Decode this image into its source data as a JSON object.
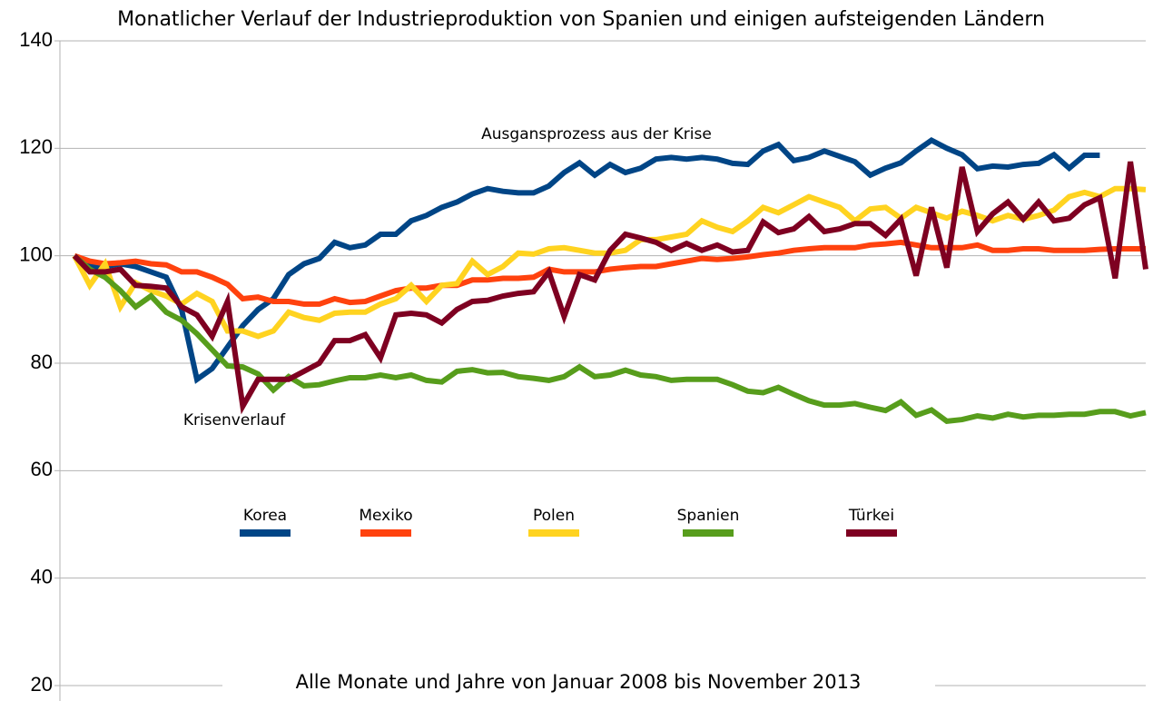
{
  "chart_data": {
    "type": "line",
    "title": "Monatlicher Verlauf der Industrieproduktion von Spanien und einigen aufsteigenden Ländern",
    "x_label": "Alle Monate und Jahre von Januar 2008 bis November 2013",
    "annotations": [
      "Ausgansprozess aus der Krise",
      "Krisenverlauf"
    ],
    "ylim": [
      20,
      140
    ],
    "yticks": [
      20,
      40,
      60,
      80,
      100,
      120,
      140
    ],
    "grid": true,
    "legend": "center",
    "series": [
      {
        "name": "Korea",
        "color": "#004586",
        "values": [
          100,
          98,
          98,
          98.5,
          98,
          97,
          96,
          90,
          77,
          79,
          83,
          87,
          90,
          92,
          96.5,
          98.5,
          99.5,
          102.5,
          101.5,
          102,
          104,
          104,
          106.5,
          107.5,
          109,
          110,
          111.5,
          112.5,
          112,
          111.7,
          111.7,
          113,
          115.5,
          117.3,
          115,
          117,
          115.5,
          116.3,
          118,
          118.3,
          118,
          118.3,
          118,
          117.2,
          117,
          119.5,
          120.7,
          117.7,
          118.3,
          119.5,
          118.5,
          117.5,
          115,
          116.3,
          117.3,
          119.5,
          121.5,
          120,
          118.8,
          116.2,
          116.7,
          116.5,
          117,
          117.2,
          118.8,
          116.3,
          118.7,
          118.7,
          null,
          null,
          null
        ]
      },
      {
        "name": "Mexiko",
        "color": "#ff420e",
        "values": [
          100,
          99,
          98.5,
          98.7,
          99,
          98.5,
          98.3,
          97,
          97,
          96,
          94.7,
          92,
          92.3,
          91.5,
          91.5,
          91,
          91,
          92,
          91.3,
          91.5,
          92.5,
          93.5,
          94,
          94,
          94.5,
          94.5,
          95.5,
          95.5,
          95.8,
          95.8,
          96,
          97.5,
          97,
          97,
          97,
          97.5,
          97.8,
          98,
          98,
          98.5,
          99,
          99.5,
          99.3,
          99.5,
          99.8,
          100.2,
          100.5,
          101,
          101.3,
          101.5,
          101.5,
          101.5,
          102,
          102.2,
          102.5,
          102,
          101.5,
          101.5,
          101.5,
          102,
          101,
          101,
          101.3,
          101.3,
          101,
          101,
          101,
          101.2,
          101.3,
          101.3,
          101.3
        ]
      },
      {
        "name": "Polen",
        "color": "#ffd320",
        "values": [
          100,
          94.5,
          98.5,
          90.5,
          95,
          93.5,
          92.5,
          91,
          93,
          91.5,
          86,
          86,
          85,
          86,
          89.5,
          88.5,
          88,
          89.3,
          89.5,
          89.5,
          91,
          92,
          94.5,
          91.5,
          94.5,
          94.8,
          99,
          96.5,
          98,
          100.5,
          100.3,
          101.3,
          101.5,
          101,
          100.5,
          100.5,
          101,
          103,
          103,
          103.5,
          104,
          106.5,
          105.3,
          104.5,
          106.5,
          109,
          108,
          109.5,
          111,
          110,
          109,
          106.5,
          108.7,
          109,
          107,
          109,
          108,
          107,
          108.3,
          107.5,
          106.5,
          107.5,
          106.8,
          107.5,
          108.5,
          111,
          111.8,
          111,
          112.5,
          112.5,
          112.3
        ]
      },
      {
        "name": "Spanien",
        "color": "#579d1c",
        "values": [
          100,
          97.5,
          96,
          93.5,
          90.5,
          92.5,
          89.5,
          88,
          85.5,
          82.5,
          79.5,
          79.3,
          78,
          75,
          77.5,
          75.8,
          76,
          76.7,
          77.3,
          77.3,
          77.8,
          77.3,
          77.8,
          76.8,
          76.5,
          78.5,
          78.8,
          78.2,
          78.3,
          77.5,
          77.2,
          76.8,
          77.5,
          79.3,
          77.5,
          77.8,
          78.7,
          77.8,
          77.5,
          76.8,
          77,
          77,
          77,
          76,
          74.8,
          74.5,
          75.5,
          74.2,
          73,
          72.2,
          72.2,
          72.5,
          71.8,
          71.2,
          72.8,
          70.3,
          71.3,
          69.2,
          69.5,
          70.2,
          69.8,
          70.5,
          70,
          70.3,
          70.3,
          70.5,
          70.5,
          71,
          71,
          70.2,
          70.8
        ]
      },
      {
        "name": "Türkei",
        "color": "#7e0021",
        "values": [
          100,
          97,
          97,
          97.5,
          94.5,
          94.3,
          94,
          90.5,
          89,
          85,
          91.5,
          72,
          77,
          77,
          77,
          78.5,
          80,
          84.2,
          84.2,
          85.3,
          81,
          89,
          89.3,
          89,
          87.5,
          90,
          91.5,
          91.7,
          92.5,
          93,
          93.3,
          97,
          88.7,
          96.5,
          95.5,
          101,
          104,
          103.3,
          102.5,
          101,
          102.3,
          101,
          102,
          100.7,
          101,
          106.3,
          104.3,
          105,
          107.3,
          104.5,
          105,
          106,
          106,
          103.8,
          106.8,
          96.3,
          109,
          97.8,
          116.5,
          104.5,
          107.8,
          110,
          106.8,
          110,
          106.5,
          107,
          109.5,
          110.8,
          95.8,
          117.5,
          97.5
        ]
      }
    ]
  }
}
